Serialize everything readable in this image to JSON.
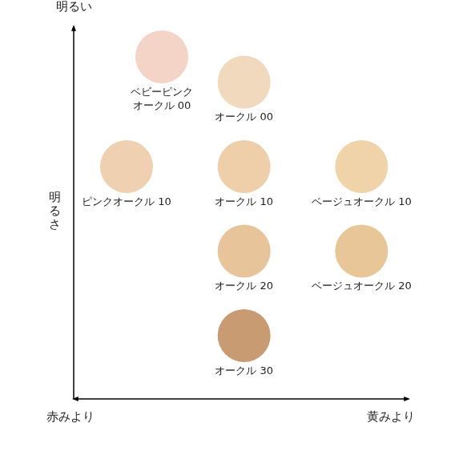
{
  "chart_data": {
    "type": "scatter",
    "y_arrow_label": "明るい",
    "y_label": "明るさ",
    "x_low_label": "赤みより",
    "x_high_label": "黄みより",
    "labels": [
      "ベビーピンク\nオークル 00",
      "オークル 00",
      "ピンクオークル 10",
      "オークル 10",
      "ベージュオークル 10",
      "オークル 20",
      "ベージュオークル 20",
      "オークル 30"
    ],
    "x": [
      1.3,
      2,
      1,
      2,
      3,
      2,
      3,
      2
    ],
    "values": [
      4.3,
      4.0,
      3,
      3,
      3,
      2,
      2,
      1
    ],
    "colors": [
      "#f3d4c6",
      "#f1d9bd",
      "#efd0b0",
      "#eecfaa",
      "#f0d3a8",
      "#e8c49b",
      "#e9c697",
      "#c99b72"
    ],
    "xlim": [
      0.55,
      3.4
    ],
    "ylim": [
      0.25,
      4.66
    ],
    "tick_labels": false,
    "grid": false,
    "marker": "circle"
  }
}
